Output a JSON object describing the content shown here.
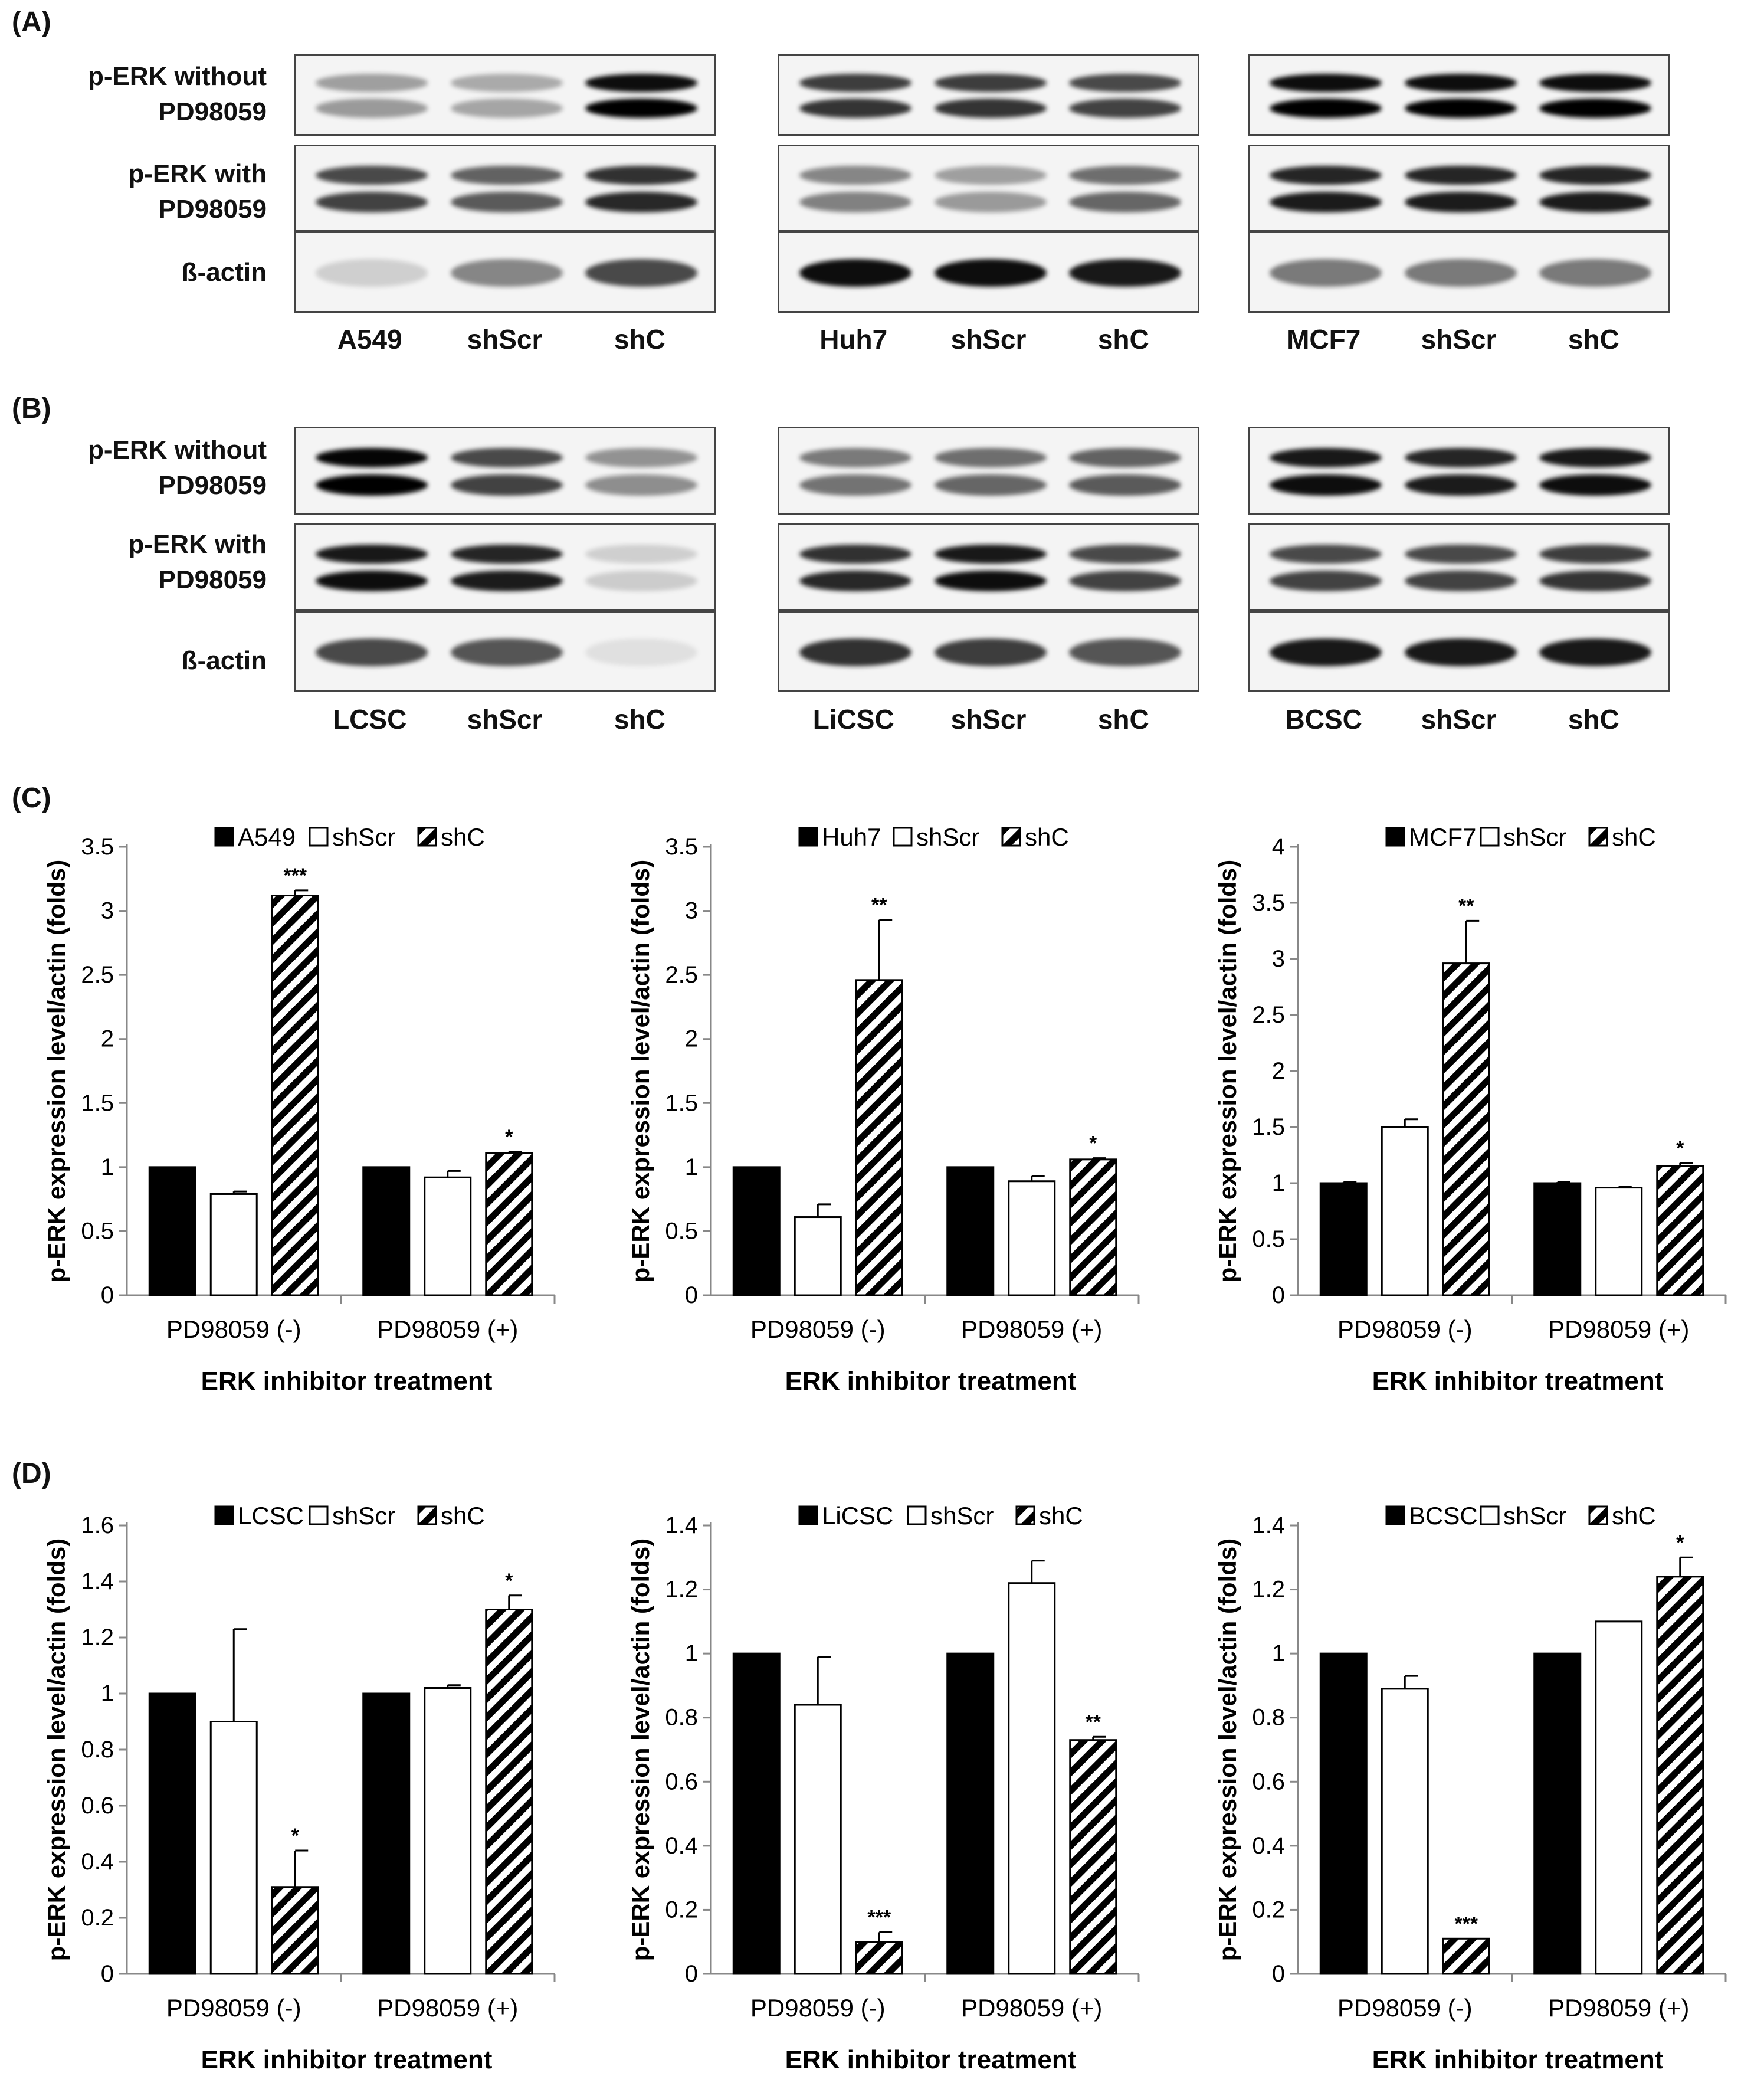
{
  "panel_letters": {
    "a": "(A)",
    "b": "(B)",
    "c": "(C)",
    "d": "(D)"
  },
  "blot_row_labels": {
    "without_line1": "p-ERK without",
    "without_line2": "PD98059",
    "with_line1": "p-ERK with",
    "with_line2": "PD98059",
    "actin": "ß-actin"
  },
  "blots_A": [
    {
      "lanes": [
        "A549",
        "shScr",
        "shC"
      ]
    },
    {
      "lanes": [
        "Huh7",
        "shScr",
        "shC"
      ]
    },
    {
      "lanes": [
        "MCF7",
        "shScr",
        "shC"
      ]
    }
  ],
  "blots_B": [
    {
      "lanes": [
        "LCSC",
        "shScr",
        "shC"
      ]
    },
    {
      "lanes": [
        "LiCSC",
        "shScr",
        "shC"
      ]
    },
    {
      "lanes": [
        "BCSC",
        "shScr",
        "shC"
      ]
    }
  ],
  "colors": {
    "black_bar": "#000000",
    "white_bar": "#ffffff",
    "axis": "#888888",
    "hatch": "#000000"
  },
  "chart_data": [
    {
      "type": "bar",
      "panel": "C",
      "categories": [
        "PD98059 (-)",
        "PD98059 (+)"
      ],
      "series": [
        {
          "name": "A549",
          "values": [
            1.0,
            1.0
          ],
          "errors": [
            0,
            0
          ],
          "fill": "black"
        },
        {
          "name": "shScr",
          "values": [
            0.79,
            0.92
          ],
          "errors": [
            0.02,
            0.05
          ],
          "fill": "white"
        },
        {
          "name": "shC",
          "values": [
            3.12,
            1.11
          ],
          "errors": [
            0.04,
            0.01
          ],
          "fill": "hatch"
        }
      ],
      "significance": [
        [
          "",
          "",
          "***"
        ],
        [
          "",
          "",
          "*"
        ]
      ],
      "ylim": [
        0,
        3.5
      ],
      "yticks": [
        0,
        0.5,
        1,
        1.5,
        2,
        2.5,
        3,
        3.5
      ],
      "ylabel": "p-ERK expression level/actin (folds)",
      "xlabel": "ERK inhibitor treatment"
    },
    {
      "type": "bar",
      "panel": "C",
      "categories": [
        "PD98059 (-)",
        "PD98059 (+)"
      ],
      "series": [
        {
          "name": "Huh7",
          "values": [
            1.0,
            1.0
          ],
          "errors": [
            0,
            0
          ],
          "fill": "black"
        },
        {
          "name": "shScr",
          "values": [
            0.61,
            0.89
          ],
          "errors": [
            0.1,
            0.04
          ],
          "fill": "white"
        },
        {
          "name": "shC",
          "values": [
            2.46,
            1.06
          ],
          "errors": [
            0.47,
            0.01
          ],
          "fill": "hatch"
        }
      ],
      "significance": [
        [
          "",
          "",
          "**"
        ],
        [
          "",
          "",
          "*"
        ]
      ],
      "ylim": [
        0,
        3.5
      ],
      "yticks": [
        0,
        0.5,
        1,
        1.5,
        2,
        2.5,
        3,
        3.5
      ],
      "ylabel": "p-ERK expression level/actin (folds)",
      "xlabel": "ERK inhibitor treatment"
    },
    {
      "type": "bar",
      "panel": "C",
      "categories": [
        "PD98059 (-)",
        "PD98059 (+)"
      ],
      "series": [
        {
          "name": "MCF7",
          "values": [
            1.0,
            1.0
          ],
          "errors": [
            0.01,
            0.01
          ],
          "fill": "black"
        },
        {
          "name": "shScr",
          "values": [
            1.5,
            0.96
          ],
          "errors": [
            0.07,
            0.01
          ],
          "fill": "white"
        },
        {
          "name": "shC",
          "values": [
            2.96,
            1.15
          ],
          "errors": [
            0.38,
            0.03
          ],
          "fill": "hatch"
        }
      ],
      "significance": [
        [
          "",
          "",
          "**"
        ],
        [
          "",
          "",
          "*"
        ]
      ],
      "ylim": [
        0,
        4
      ],
      "yticks": [
        0,
        0.5,
        1,
        1.5,
        2,
        2.5,
        3,
        3.5,
        4
      ],
      "ylabel": "p-ERK expression level/actin (folds)",
      "xlabel": "ERK inhibitor treatment"
    },
    {
      "type": "bar",
      "panel": "D",
      "categories": [
        "PD98059 (-)",
        "PD98059 (+)"
      ],
      "series": [
        {
          "name": "LCSC",
          "values": [
            1.0,
            1.0
          ],
          "errors": [
            0,
            0
          ],
          "fill": "black"
        },
        {
          "name": "shScr",
          "values": [
            0.9,
            1.02
          ],
          "errors": [
            0.33,
            0.01
          ],
          "fill": "white"
        },
        {
          "name": "shC",
          "values": [
            0.31,
            1.3
          ],
          "errors": [
            0.13,
            0.05
          ],
          "fill": "hatch"
        }
      ],
      "significance": [
        [
          "",
          "",
          "*"
        ],
        [
          "",
          "",
          "*"
        ]
      ],
      "ylim": [
        0,
        1.6
      ],
      "yticks": [
        0,
        0.2,
        0.4,
        0.6,
        0.8,
        1,
        1.2,
        1.4,
        1.6
      ],
      "ylabel": "p-ERK expression level/actin (folds)",
      "xlabel": "ERK inhibitor treatment"
    },
    {
      "type": "bar",
      "panel": "D",
      "categories": [
        "PD98059 (-)",
        "PD98059 (+)"
      ],
      "series": [
        {
          "name": "LiCSC",
          "values": [
            1.0,
            1.0
          ],
          "errors": [
            0,
            0
          ],
          "fill": "black"
        },
        {
          "name": "shScr",
          "values": [
            0.84,
            1.22
          ],
          "errors": [
            0.15,
            0.07
          ],
          "fill": "white"
        },
        {
          "name": "shC",
          "values": [
            0.1,
            0.73
          ],
          "errors": [
            0.03,
            0.01
          ],
          "fill": "hatch"
        }
      ],
      "significance": [
        [
          "",
          "",
          "***"
        ],
        [
          "",
          "",
          "**"
        ]
      ],
      "ylim": [
        0,
        1.4
      ],
      "yticks": [
        0,
        0.2,
        0.4,
        0.6,
        0.8,
        1,
        1.2,
        1.4
      ],
      "ylabel": "p-ERK expression level/actin (folds)",
      "xlabel": "ERK inhibitor treatment"
    },
    {
      "type": "bar",
      "panel": "D",
      "categories": [
        "PD98059 (-)",
        "PD98059 (+)"
      ],
      "series": [
        {
          "name": "BCSC",
          "values": [
            1.0,
            1.0
          ],
          "errors": [
            0,
            0
          ],
          "fill": "black"
        },
        {
          "name": "shScr",
          "values": [
            0.89,
            1.1
          ],
          "errors": [
            0.04,
            0
          ],
          "fill": "white"
        },
        {
          "name": "shC",
          "values": [
            0.11,
            1.24
          ],
          "errors": [
            0,
            0.06
          ],
          "fill": "hatch"
        }
      ],
      "significance": [
        [
          "",
          "",
          "***"
        ],
        [
          "",
          "",
          "*"
        ]
      ],
      "ylim": [
        0,
        1.4
      ],
      "yticks": [
        0,
        0.2,
        0.4,
        0.6,
        0.8,
        1,
        1.2,
        1.4
      ],
      "ylabel": "p-ERK expression level/actin (folds)",
      "xlabel": "ERK inhibitor treatment"
    }
  ]
}
